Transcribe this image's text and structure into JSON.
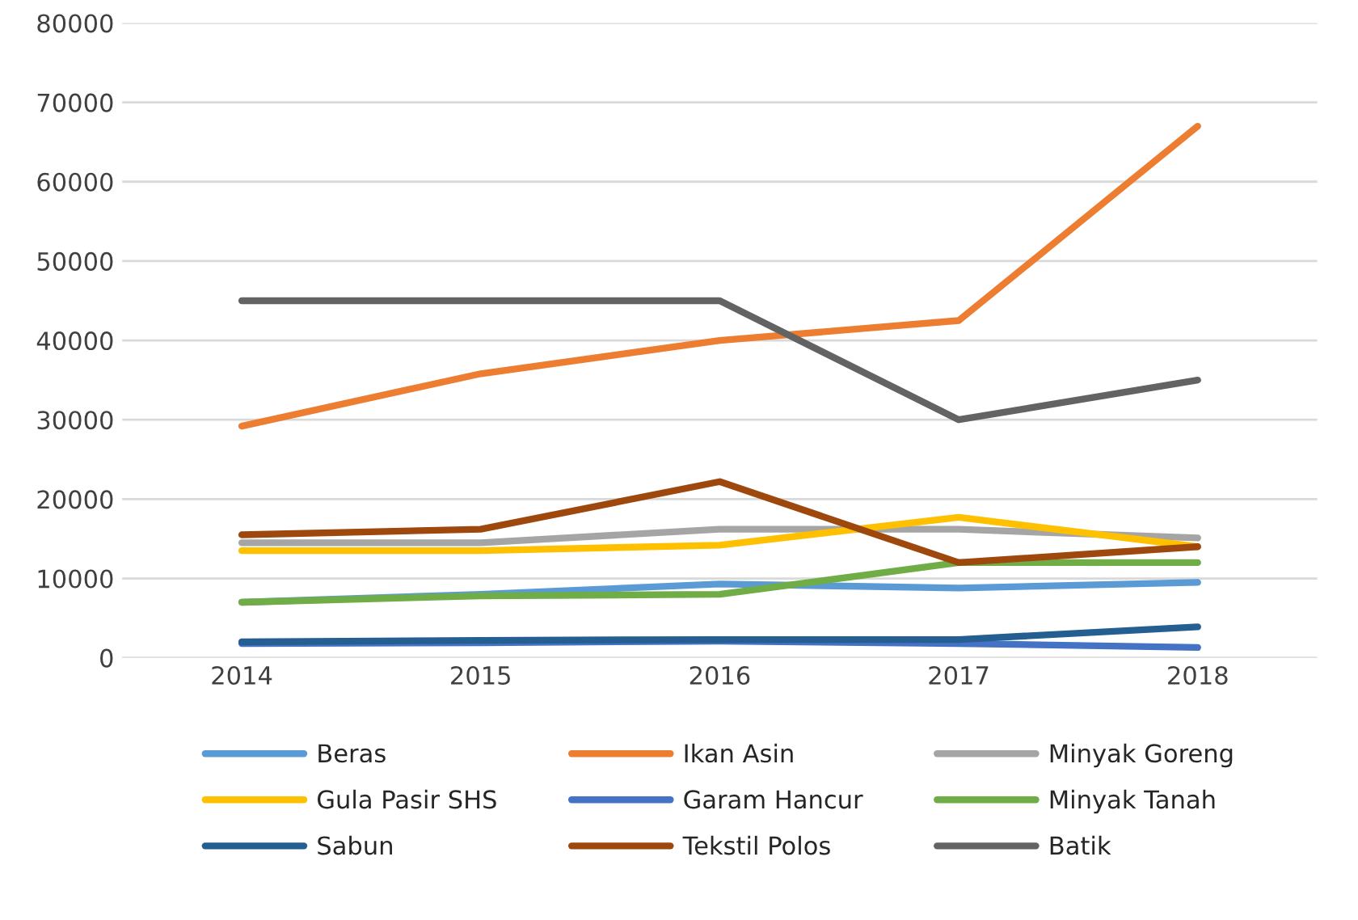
{
  "chart_data": {
    "type": "line",
    "categories": [
      "2014",
      "2015",
      "2016",
      "2017",
      "2018"
    ],
    "series": [
      {
        "name": "Beras",
        "color": "#5b9bd5",
        "values": [
          7000,
          8000,
          9300,
          8800,
          9500
        ]
      },
      {
        "name": "Ikan Asin",
        "color": "#ed7d31",
        "values": [
          29200,
          35800,
          40000,
          42500,
          67000
        ]
      },
      {
        "name": "Minyak Goreng",
        "color": "#a5a5a5",
        "values": [
          14500,
          14500,
          16200,
          16200,
          15100
        ]
      },
      {
        "name": "Gula Pasir SHS",
        "color": "#ffc000",
        "values": [
          13500,
          13500,
          14200,
          17700,
          14000
        ]
      },
      {
        "name": "Garam Hancur",
        "color": "#4472c4",
        "values": [
          1800,
          1900,
          2100,
          1800,
          1300
        ]
      },
      {
        "name": "Minyak Tanah",
        "color": "#70ad47",
        "values": [
          7000,
          7800,
          8000,
          12000,
          12000
        ]
      },
      {
        "name": "Sabun",
        "color": "#255e91",
        "values": [
          2000,
          2200,
          2300,
          2300,
          3900
        ]
      },
      {
        "name": "Tekstil Polos",
        "color": "#9e480e",
        "values": [
          15500,
          16200,
          22200,
          12000,
          14000
        ]
      },
      {
        "name": "Batik",
        "color": "#636363",
        "values": [
          45000,
          45000,
          45000,
          30000,
          35000
        ]
      }
    ],
    "ylim": [
      0,
      80000
    ],
    "yticks": [
      0,
      10000,
      20000,
      30000,
      40000,
      50000,
      60000,
      70000,
      80000
    ],
    "grid": "y",
    "legend": "bottom",
    "marker": "none",
    "line_style": "solid"
  }
}
